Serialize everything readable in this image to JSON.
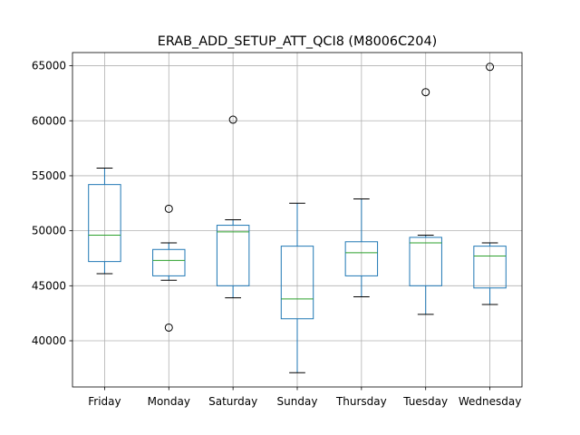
{
  "chart_data": {
    "type": "box",
    "title": "ERAB_ADD_SETUP_ATT_QCI8 (M8006C204)",
    "xlabel": "",
    "ylabel": "",
    "ylim": [
      35800,
      66200
    ],
    "yticks": [
      40000,
      45000,
      50000,
      55000,
      60000,
      65000
    ],
    "grid": true,
    "colors": {
      "box": "#1f77b4",
      "median": "#2ca02c",
      "whisker": "#000000",
      "grid": "#b0b0b0",
      "flier": "#000000"
    },
    "categories": [
      "Friday",
      "Monday",
      "Saturday",
      "Sunday",
      "Thursday",
      "Tuesday",
      "Wednesday"
    ],
    "boxes": [
      {
        "label": "Friday",
        "whislo": 46100,
        "q1": 47200,
        "med": 49600,
        "q3": 54200,
        "whishi": 55700,
        "fliers": []
      },
      {
        "label": "Monday",
        "whislo": 45500,
        "q1": 45900,
        "med": 47300,
        "q3": 48300,
        "whishi": 48900,
        "fliers": [
          52000,
          41200
        ]
      },
      {
        "label": "Saturday",
        "whislo": 43900,
        "q1": 45000,
        "med": 49900,
        "q3": 50500,
        "whishi": 51000,
        "fliers": [
          60100
        ]
      },
      {
        "label": "Sunday",
        "whislo": 37100,
        "q1": 42000,
        "med": 43800,
        "q3": 48600,
        "whishi": 52500,
        "fliers": []
      },
      {
        "label": "Thursday",
        "whislo": 44000,
        "q1": 45900,
        "med": 48000,
        "q3": 49000,
        "whishi": 52900,
        "fliers": []
      },
      {
        "label": "Tuesday",
        "whislo": 42400,
        "q1": 45000,
        "med": 48900,
        "q3": 49400,
        "whishi": 49600,
        "fliers": [
          62600
        ]
      },
      {
        "label": "Wednesday",
        "whislo": 43300,
        "q1": 44800,
        "med": 47700,
        "q3": 48600,
        "whishi": 48900,
        "fliers": [
          64900
        ]
      }
    ]
  }
}
